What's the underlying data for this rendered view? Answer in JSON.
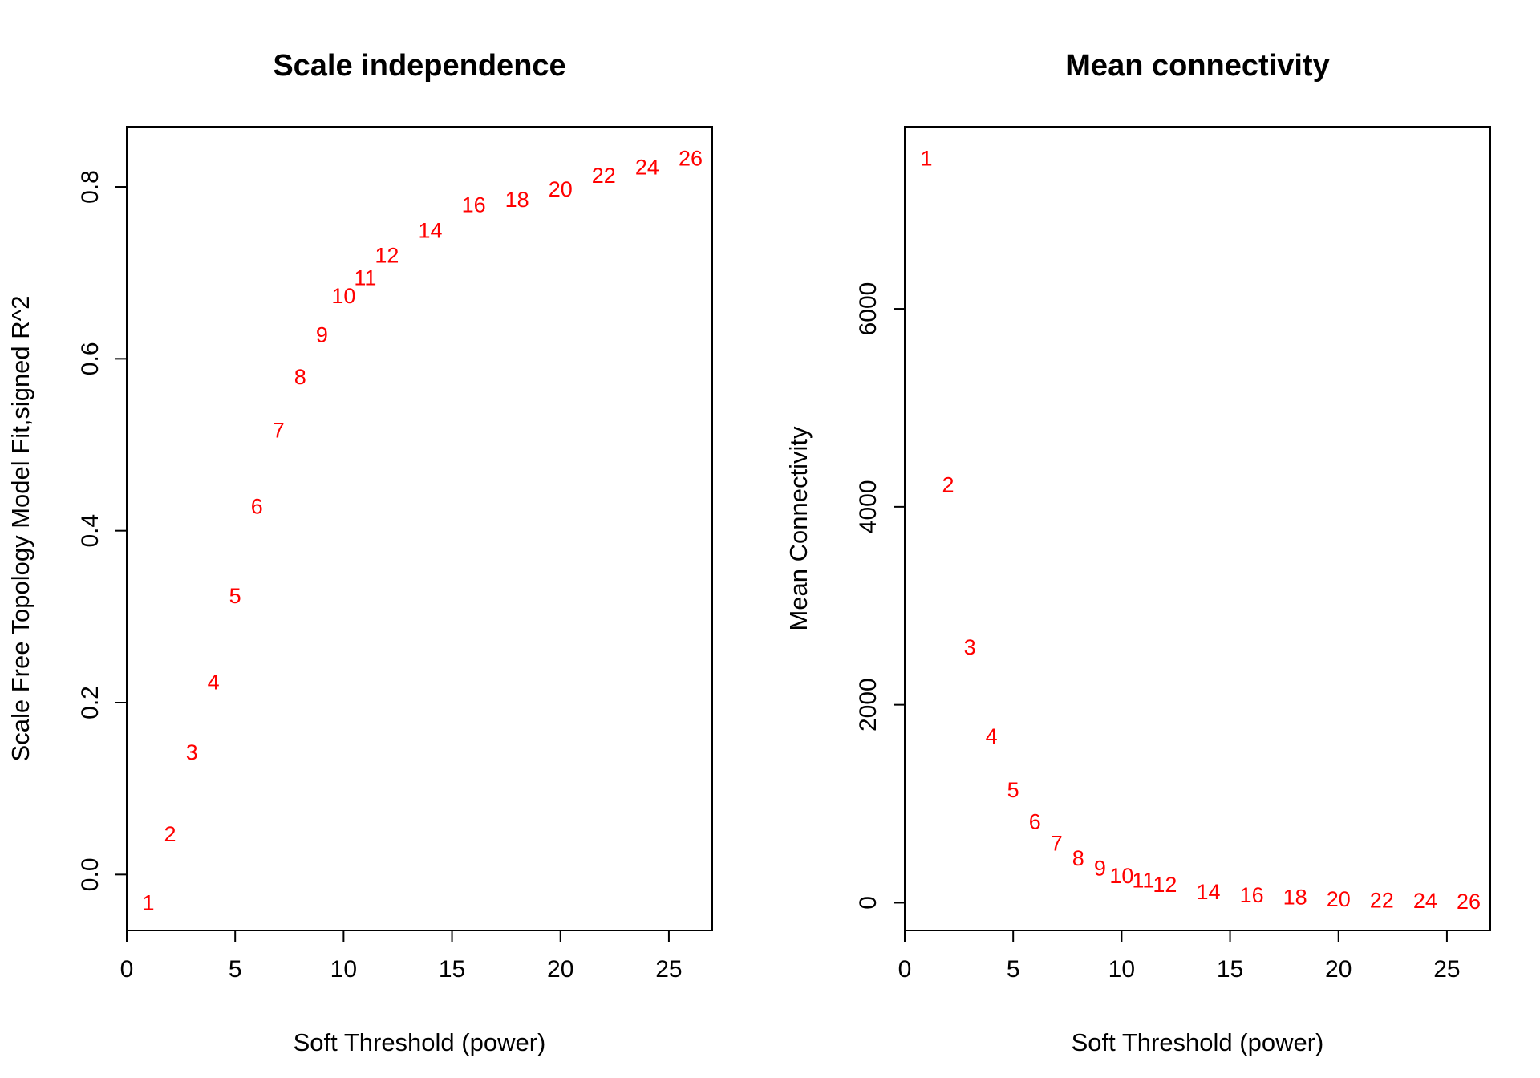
{
  "chart_data": [
    {
      "type": "scatter",
      "title": "Scale independence",
      "xlabel": "Soft Threshold (power)",
      "ylabel": "Scale Free Topology Model Fit,signed R^2",
      "xlim": [
        0,
        27
      ],
      "ylim": [
        -0.065,
        0.87
      ],
      "x_ticks": [
        "0",
        "5",
        "10",
        "15",
        "20",
        "25"
      ],
      "y_ticks": [
        "0.0",
        "0.2",
        "0.4",
        "0.6",
        "0.8"
      ],
      "point_color": "#ff0000",
      "grid": false,
      "series": [
        {
          "labels": [
            "1",
            "2",
            "3",
            "4",
            "5",
            "6",
            "7",
            "8",
            "9",
            "10",
            "11",
            "12",
            "14",
            "16",
            "18",
            "20",
            "22",
            "24",
            "26"
          ],
          "x": [
            1,
            2,
            3,
            4,
            5,
            6,
            7,
            8,
            9,
            10,
            11,
            12,
            14,
            16,
            18,
            20,
            22,
            24,
            26
          ],
          "y": [
            -0.033,
            0.047,
            0.142,
            0.224,
            0.324,
            0.428,
            0.517,
            0.579,
            0.628,
            0.673,
            0.694,
            0.72,
            0.749,
            0.779,
            0.785,
            0.797,
            0.813,
            0.823,
            0.833
          ]
        }
      ]
    },
    {
      "type": "scatter",
      "title": "Mean connectivity",
      "xlabel": "Soft Threshold (power)",
      "ylabel": "Mean Connectivity",
      "xlim": [
        0,
        27
      ],
      "ylim": [
        -280,
        7840
      ],
      "x_ticks": [
        "0",
        "5",
        "10",
        "15",
        "20",
        "25"
      ],
      "y_ticks": [
        "0",
        "2000",
        "4000",
        "6000"
      ],
      "point_color": "#ff0000",
      "grid": false,
      "series": [
        {
          "labels": [
            "1",
            "2",
            "3",
            "4",
            "5",
            "6",
            "7",
            "8",
            "9",
            "10",
            "11",
            "12",
            "14",
            "16",
            "18",
            "20",
            "22",
            "24",
            "26"
          ],
          "x": [
            1,
            2,
            3,
            4,
            5,
            6,
            7,
            8,
            9,
            10,
            11,
            12,
            14,
            16,
            18,
            20,
            22,
            24,
            26
          ],
          "y": [
            7520,
            4220,
            2580,
            1680,
            1140,
            820,
            600,
            450,
            350,
            270,
            225,
            180,
            110,
            75,
            55,
            35,
            25,
            20,
            10
          ]
        }
      ]
    }
  ]
}
